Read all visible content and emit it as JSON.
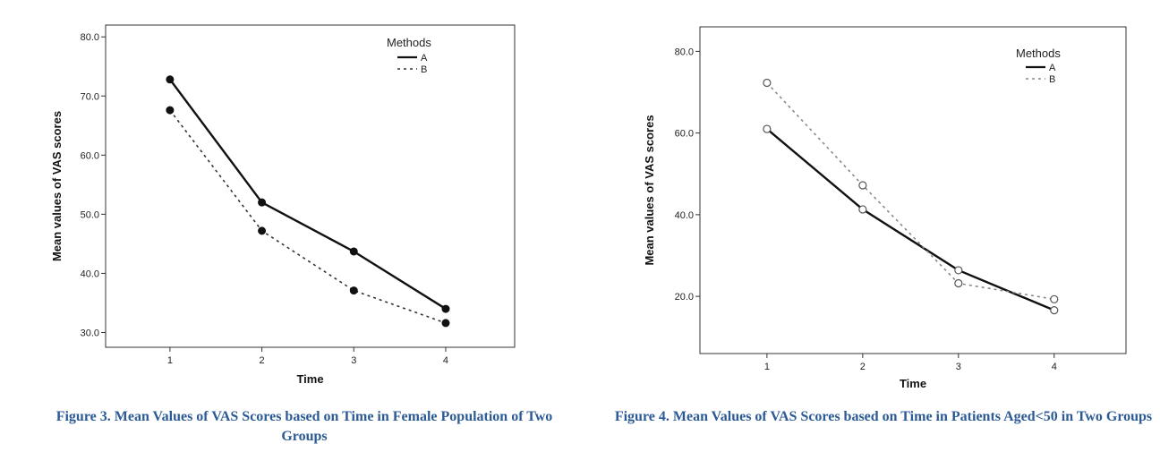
{
  "chart_data": [
    {
      "type": "line",
      "caption": "Figure 3. Mean Values of VAS Scores based on Time in Female Population of Two Groups",
      "xlabel": "Time",
      "ylabel": "Mean values of VAS scores",
      "x": [
        1,
        2,
        3,
        4
      ],
      "x_tick_labels": [
        "1",
        "2",
        "3",
        "4"
      ],
      "y_ticks": [
        30,
        40,
        50,
        60,
        70,
        80
      ],
      "y_tick_labels": [
        "30.0",
        "40.0",
        "50.0",
        "60.0",
        "70.0",
        "80.0"
      ],
      "ylim": [
        27.5,
        82
      ],
      "xlim": [
        0.3,
        4.75
      ],
      "marker": "filled-circle",
      "grid": false,
      "legend": {
        "title": "Methods",
        "position": "top-right"
      },
      "series": [
        {
          "name": "A",
          "line_style": "solid",
          "values": [
            72.8,
            52.0,
            43.7,
            34.0
          ]
        },
        {
          "name": "B",
          "line_style": "dotted",
          "values": [
            67.6,
            47.2,
            37.1,
            31.6
          ]
        }
      ]
    },
    {
      "type": "line",
      "caption": "Figure 4. Mean Values of VAS Scores based on Time in Patients Aged<50 in Two Groups",
      "xlabel": "Time",
      "ylabel": "Mean values of VAS scores",
      "x": [
        1,
        2,
        3,
        4
      ],
      "x_tick_labels": [
        "1",
        "2",
        "3",
        "4"
      ],
      "y_ticks": [
        20,
        40,
        60,
        80
      ],
      "y_tick_labels": [
        "20.0",
        "40.0",
        "60.0",
        "80.0"
      ],
      "ylim": [
        6,
        86
      ],
      "xlim": [
        0.3,
        4.75
      ],
      "marker": "open-circle",
      "grid": false,
      "legend": {
        "title": "Methods",
        "position": "top-right"
      },
      "series": [
        {
          "name": "A",
          "line_style": "solid",
          "values": [
            61.0,
            41.3,
            26.4,
            16.6
          ]
        },
        {
          "name": "B",
          "line_style": "dotted",
          "values": [
            72.3,
            47.2,
            23.2,
            19.3
          ]
        }
      ]
    }
  ],
  "colors": {
    "caption": "#2b5a95",
    "series_a": "#111111",
    "series_b_fig3": "#333333",
    "series_b_fig4": "#888888",
    "axis": "#333333"
  }
}
